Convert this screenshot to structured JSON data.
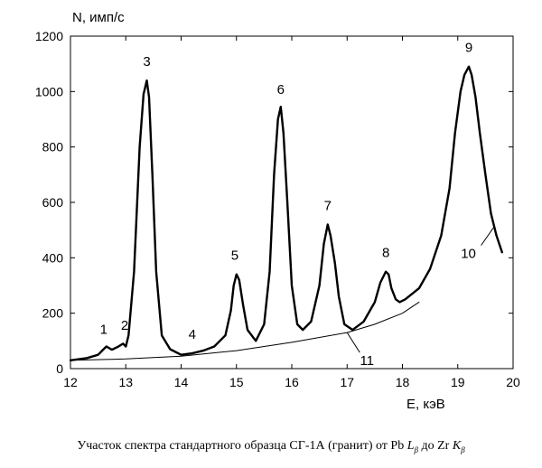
{
  "caption": {
    "prefix": "Участок спектра стандартного образца СГ-1А (гранит) от Pb ",
    "sym1": "L",
    "sub1": "β",
    "middle": " до Zr ",
    "sym2": "K",
    "sub2": "β"
  },
  "chart_data": {
    "type": "line",
    "ylabel": "N, имп/с",
    "xlabel": "E, кэВ",
    "xlim": [
      12,
      20
    ],
    "ylim": [
      0,
      1200
    ],
    "xticks": [
      12,
      13,
      14,
      15,
      16,
      17,
      18,
      19,
      20
    ],
    "yticks": [
      0,
      200,
      400,
      600,
      800,
      1000,
      1200
    ],
    "grid": false,
    "series": [
      {
        "role": "spectrum",
        "x": [
          12.0,
          12.3,
          12.5,
          12.6,
          12.65,
          12.75,
          12.85,
          12.95,
          13.0,
          13.05,
          13.15,
          13.25,
          13.32,
          13.38,
          13.42,
          13.48,
          13.55,
          13.65,
          13.8,
          14.0,
          14.2,
          14.4,
          14.6,
          14.8,
          14.9,
          14.95,
          15.0,
          15.05,
          15.12,
          15.2,
          15.35,
          15.5,
          15.6,
          15.68,
          15.75,
          15.8,
          15.85,
          15.92,
          16.0,
          16.1,
          16.2,
          16.35,
          16.5,
          16.58,
          16.65,
          16.7,
          16.78,
          16.85,
          16.95,
          17.1,
          17.3,
          17.5,
          17.6,
          17.7,
          17.75,
          17.8,
          17.88,
          17.95,
          18.05,
          18.3,
          18.5,
          18.7,
          18.85,
          18.95,
          19.05,
          19.12,
          19.2,
          19.25,
          19.32,
          19.4,
          19.5,
          19.6,
          19.7,
          19.8
        ],
        "y": [
          30,
          38,
          50,
          70,
          80,
          68,
          78,
          90,
          80,
          120,
          350,
          800,
          990,
          1040,
          980,
          700,
          350,
          120,
          70,
          50,
          55,
          65,
          80,
          120,
          210,
          300,
          340,
          320,
          230,
          140,
          100,
          160,
          350,
          700,
          900,
          945,
          850,
          600,
          300,
          160,
          140,
          170,
          300,
          450,
          520,
          480,
          380,
          260,
          160,
          140,
          170,
          240,
          310,
          350,
          340,
          290,
          250,
          240,
          250,
          290,
          360,
          480,
          650,
          850,
          1000,
          1060,
          1090,
          1060,
          980,
          850,
          700,
          560,
          480,
          420
        ]
      },
      {
        "role": "background",
        "x": [
          12.0,
          13.0,
          14.0,
          15.0,
          16.0,
          17.0,
          17.5,
          18.0,
          18.3
        ],
        "y": [
          30,
          35,
          45,
          65,
          95,
          130,
          160,
          200,
          240
        ]
      }
    ],
    "annotations": [
      {
        "text": "1",
        "x": 12.6,
        "y": 80
      },
      {
        "text": "2",
        "x": 12.98,
        "y": 95
      },
      {
        "text": "3",
        "x": 13.38,
        "y": 1040
      },
      {
        "text": "4",
        "x": 14.2,
        "y": 55
      },
      {
        "text": "5",
        "x": 14.97,
        "y": 340
      },
      {
        "text": "6",
        "x": 15.8,
        "y": 945
      },
      {
        "text": "7",
        "x": 16.65,
        "y": 520
      },
      {
        "text": "8",
        "x": 17.7,
        "y": 350
      },
      {
        "text": "9",
        "x": 19.2,
        "y": 1090
      },
      {
        "text": "10",
        "x": 19.65,
        "y": 510
      },
      {
        "text": "11",
        "x": 17.0,
        "y": 130
      }
    ]
  }
}
